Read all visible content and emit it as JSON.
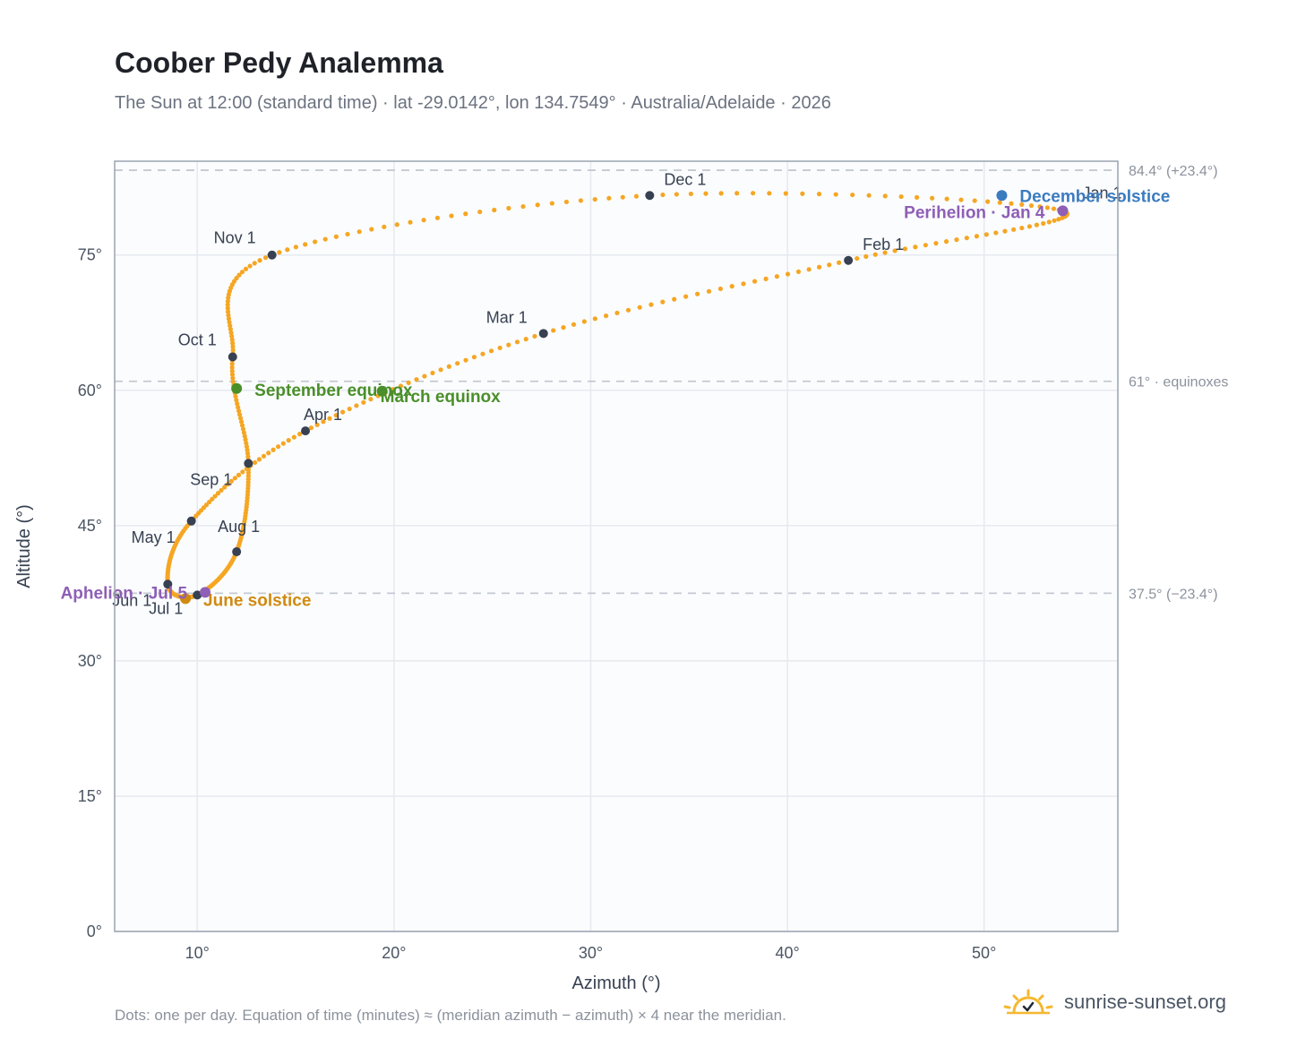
{
  "header": {
    "title": "Coober Pedy Analemma",
    "subtitle": "The Sun at 12:00 (standard time) · lat -29.0142°, lon 134.7549° · Australia/Adelaide · 2026"
  },
  "footer": {
    "note": "Dots: one per day. Equation of time (minutes) ≈ (meridian azimuth − azimuth) × 4 near the meridian.",
    "brand": "sunrise-sunset.org",
    "brand_icon": "sun-icon"
  },
  "colors": {
    "curve": "#f5a623",
    "month_marker": "#374151",
    "equinox": "#4a8f2a",
    "december_solstice": "#3b7bbf",
    "june_solstice": "#d08a0f",
    "perihelion": "#8e5fb5",
    "aphelion": "#8e5fb5",
    "reference_line": "#c4c9d2",
    "plot_background": "#fbfcfe",
    "frame": "#9aa3af"
  },
  "chart_data": {
    "type": "scatter",
    "xlabel": "Azimuth (°)",
    "ylabel": "Altitude (°)",
    "xlim": [
      5.8,
      56.8
    ],
    "ylim": [
      0,
      85.4
    ],
    "xticks": [
      10,
      20,
      30,
      40,
      50
    ],
    "yticks": [
      0,
      15,
      30,
      45,
      60,
      75
    ],
    "x_tick_labels": [
      "10°",
      "20°",
      "30°",
      "40°",
      "50°"
    ],
    "y_tick_labels": [
      "0°",
      "15°",
      "30°",
      "45°",
      "60°",
      "75°"
    ],
    "grid": true,
    "reference_lines": [
      {
        "y": 84.4,
        "label": "84.4° (+23.4°)"
      },
      {
        "y": 61.0,
        "label": "61° · equinoxes"
      },
      {
        "y": 37.5,
        "label": "37.5° (−23.4°)"
      }
    ],
    "month_markers": [
      {
        "label": "Jan 1",
        "x": 54.0,
        "y": 79.9
      },
      {
        "label": "Feb 1",
        "x": 43.1,
        "y": 74.4
      },
      {
        "label": "Mar 1",
        "x": 27.6,
        "y": 66.3
      },
      {
        "label": "Apr 1",
        "x": 15.5,
        "y": 55.5
      },
      {
        "label": "May 1",
        "x": 9.7,
        "y": 45.5
      },
      {
        "label": "Jun 1",
        "x": 8.5,
        "y": 38.5
      },
      {
        "label": "Jul 1",
        "x": 10.0,
        "y": 37.3
      },
      {
        "label": "Aug 1",
        "x": 12.0,
        "y": 42.1
      },
      {
        "label": "Sep 1",
        "x": 12.6,
        "y": 51.9
      },
      {
        "label": "Oct 1",
        "x": 11.8,
        "y": 63.7
      },
      {
        "label": "Nov 1",
        "x": 13.8,
        "y": 75.0
      },
      {
        "label": "Dec 1",
        "x": 33.0,
        "y": 81.6
      }
    ],
    "events": [
      {
        "label": "December solstice",
        "x": 50.9,
        "y": 81.6,
        "color_key": "december_solstice"
      },
      {
        "label": "Perihelion · Jan 4",
        "x": 54.0,
        "y": 79.9,
        "color_key": "perihelion"
      },
      {
        "label": "March equinox",
        "x": 19.4,
        "y": 59.9,
        "color_key": "equinox"
      },
      {
        "label": "September equinox",
        "x": 12.0,
        "y": 60.2,
        "color_key": "equinox"
      },
      {
        "label": "June solstice",
        "x": 9.4,
        "y": 36.9,
        "color_key": "june_solstice"
      },
      {
        "label": "Aphelion · Jul 5",
        "x": 10.4,
        "y": 37.6,
        "color_key": "aphelion"
      }
    ]
  }
}
